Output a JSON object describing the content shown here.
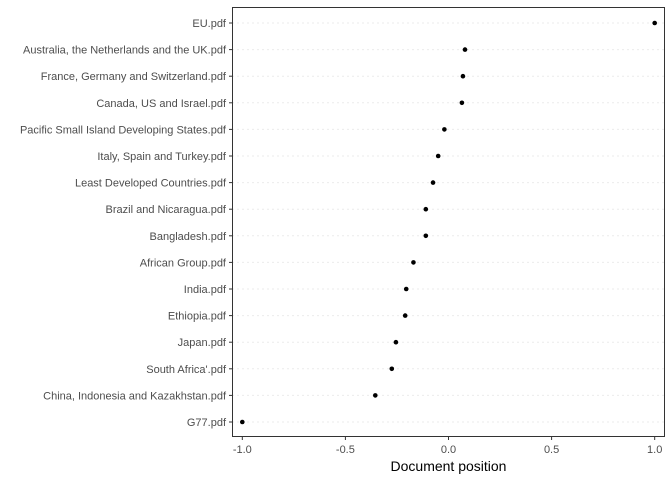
{
  "chart_data": {
    "type": "scatter",
    "title": "",
    "xlabel": "Document position",
    "ylabel": "",
    "xlim": [
      -1.05,
      1.05
    ],
    "x_ticks": [
      -1.0,
      -0.5,
      0.0,
      0.5,
      1.0
    ],
    "x_tick_labels": [
      "-1.0",
      "-0.5",
      "0.0",
      "0.5",
      "1.0"
    ],
    "grid": "horizontal-dotted",
    "point_color": "#000000",
    "gridline_color": "#ebebeb",
    "panel_border_color": "#333333",
    "points": [
      {
        "label": "EU.pdf",
        "x": 1.0
      },
      {
        "label": "Australia, the Netherlands and the UK.pdf",
        "x": 0.08
      },
      {
        "label": "France, Germany and Switzerland.pdf",
        "x": 0.07
      },
      {
        "label": "Canada, US and Israel.pdf",
        "x": 0.065
      },
      {
        "label": "Pacific Small Island Developing States.pdf",
        "x": -0.02
      },
      {
        "label": "Italy, Spain and Turkey.pdf",
        "x": -0.05
      },
      {
        "label": "Least Developed Countries.pdf",
        "x": -0.075
      },
      {
        "label": "Brazil and Nicaragua.pdf",
        "x": -0.11
      },
      {
        "label": "Bangladesh.pdf",
        "x": -0.11
      },
      {
        "label": "African Group.pdf",
        "x": -0.17
      },
      {
        "label": "India.pdf",
        "x": -0.205
      },
      {
        "label": "Ethiopia.pdf",
        "x": -0.21
      },
      {
        "label": "Japan.pdf",
        "x": -0.255
      },
      {
        "label": "South Africa'.pdf",
        "x": -0.275
      },
      {
        "label": "China, Indonesia and Kazakhstan.pdf",
        "x": -0.355
      },
      {
        "label": "G77.pdf",
        "x": -1.0
      }
    ]
  }
}
